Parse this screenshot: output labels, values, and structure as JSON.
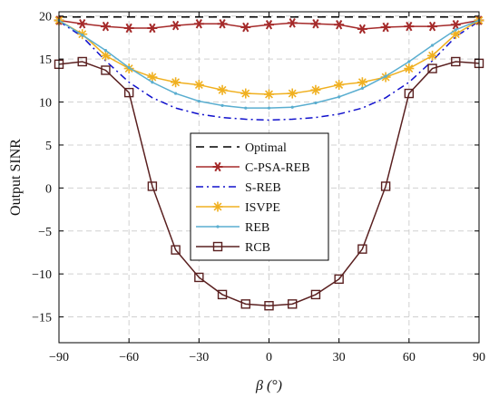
{
  "chart_data": {
    "type": "line",
    "xlabel": "β (°)",
    "ylabel": "Output SINR",
    "xlim": [
      -90,
      90
    ],
    "ylim": [
      -18,
      20.5
    ],
    "xticks": [
      -90,
      -60,
      -30,
      0,
      30,
      60,
      90
    ],
    "xtick_labels": [
      "−90",
      "−60",
      "−30",
      "0",
      "30",
      "60",
      "90"
    ],
    "yticks": [
      -15,
      -10,
      -5,
      0,
      5,
      10,
      15,
      20
    ],
    "ytick_labels": [
      "−15",
      "−10",
      "−5",
      "0",
      "5",
      "10",
      "15",
      "20"
    ],
    "grid": true,
    "legend_position": "center",
    "x": [
      -90,
      -80,
      -70,
      -60,
      -50,
      -40,
      -30,
      -20,
      -10,
      0,
      10,
      20,
      30,
      40,
      50,
      60,
      70,
      80,
      90
    ],
    "series": [
      {
        "name": "Optimal",
        "color": "#000000",
        "style": "dashed",
        "marker": "none",
        "values": [
          19.9,
          19.9,
          19.9,
          19.9,
          19.9,
          19.9,
          19.9,
          19.9,
          19.9,
          19.9,
          19.9,
          19.9,
          19.9,
          19.9,
          19.9,
          19.9,
          19.9,
          19.9,
          19.9
        ]
      },
      {
        "name": "C-PSA-REB",
        "color": "#a52a2a",
        "style": "solid",
        "marker": "star",
        "values": [
          19.5,
          19.1,
          18.8,
          18.6,
          18.6,
          18.9,
          19.1,
          19.1,
          18.7,
          19.0,
          19.2,
          19.1,
          19.0,
          18.5,
          18.7,
          18.8,
          18.8,
          19.0,
          19.5
        ]
      },
      {
        "name": "S-REB",
        "color": "#1010cc",
        "style": "dashdot",
        "marker": "none",
        "values": [
          19.4,
          17.6,
          14.8,
          12.3,
          10.5,
          9.3,
          8.6,
          8.2,
          8.0,
          7.9,
          8.0,
          8.2,
          8.6,
          9.3,
          10.5,
          12.3,
          14.8,
          17.6,
          19.4
        ]
      },
      {
        "name": "ISVPE",
        "color": "#f0b020",
        "style": "solid",
        "marker": "asterisk",
        "values": [
          19.5,
          17.9,
          15.4,
          13.9,
          12.9,
          12.3,
          12.0,
          11.4,
          11.0,
          10.9,
          11.0,
          11.4,
          12.0,
          12.3,
          12.9,
          13.9,
          15.4,
          17.9,
          19.5
        ]
      },
      {
        "name": "REB",
        "color": "#5aaed0",
        "style": "solid",
        "marker": "dot",
        "values": [
          19.5,
          17.8,
          16.0,
          14.0,
          12.3,
          11.0,
          10.1,
          9.6,
          9.3,
          9.3,
          9.4,
          9.9,
          10.6,
          11.6,
          13.0,
          14.7,
          16.6,
          18.4,
          19.5
        ]
      },
      {
        "name": "RCB",
        "color": "#5a2020",
        "style": "solid",
        "marker": "square",
        "values": [
          14.4,
          14.7,
          13.7,
          11.1,
          0.2,
          -7.2,
          -10.4,
          -12.4,
          -13.5,
          -13.7,
          -13.5,
          -12.4,
          -10.6,
          -7.1,
          0.2,
          11.0,
          13.9,
          14.7,
          14.5
        ]
      }
    ]
  }
}
